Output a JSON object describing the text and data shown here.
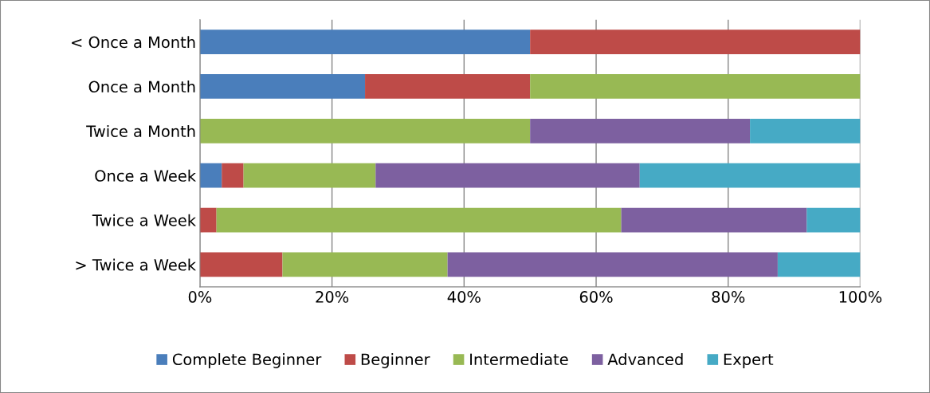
{
  "chart_data": {
    "type": "bar",
    "orientation": "horizontal",
    "stacked": true,
    "categories": [
      "< Once a Month",
      "Once a Month",
      "Twice a Month",
      "Once a Week",
      "Twice a Week",
      "> Twice a Week"
    ],
    "series": [
      {
        "name": "Complete Beginner",
        "color": "#4a7ebb",
        "values": [
          50,
          25,
          0,
          3.3,
          0,
          0
        ]
      },
      {
        "name": "Beginner",
        "color": "#be4b48",
        "values": [
          50,
          25,
          0,
          3.3,
          2.5,
          12.5
        ]
      },
      {
        "name": "Intermediate",
        "color": "#98b954",
        "values": [
          0,
          50,
          50,
          20,
          61.3,
          25
        ]
      },
      {
        "name": "Advanced",
        "color": "#7d60a0",
        "values": [
          0,
          0,
          33.3,
          40,
          28.1,
          50
        ]
      },
      {
        "name": "Expert",
        "color": "#46aac5",
        "values": [
          0,
          0,
          16.7,
          33.4,
          8.1,
          12.5
        ]
      }
    ],
    "xlim": [
      0,
      100
    ],
    "xticks": [
      {
        "value": 0,
        "label": "0%"
      },
      {
        "value": 20,
        "label": "20%"
      },
      {
        "value": 40,
        "label": "40%"
      },
      {
        "value": 60,
        "label": "60%"
      },
      {
        "value": 80,
        "label": "80%"
      },
      {
        "value": 100,
        "label": "100%"
      }
    ],
    "grid": "x",
    "legend": "bottom"
  }
}
